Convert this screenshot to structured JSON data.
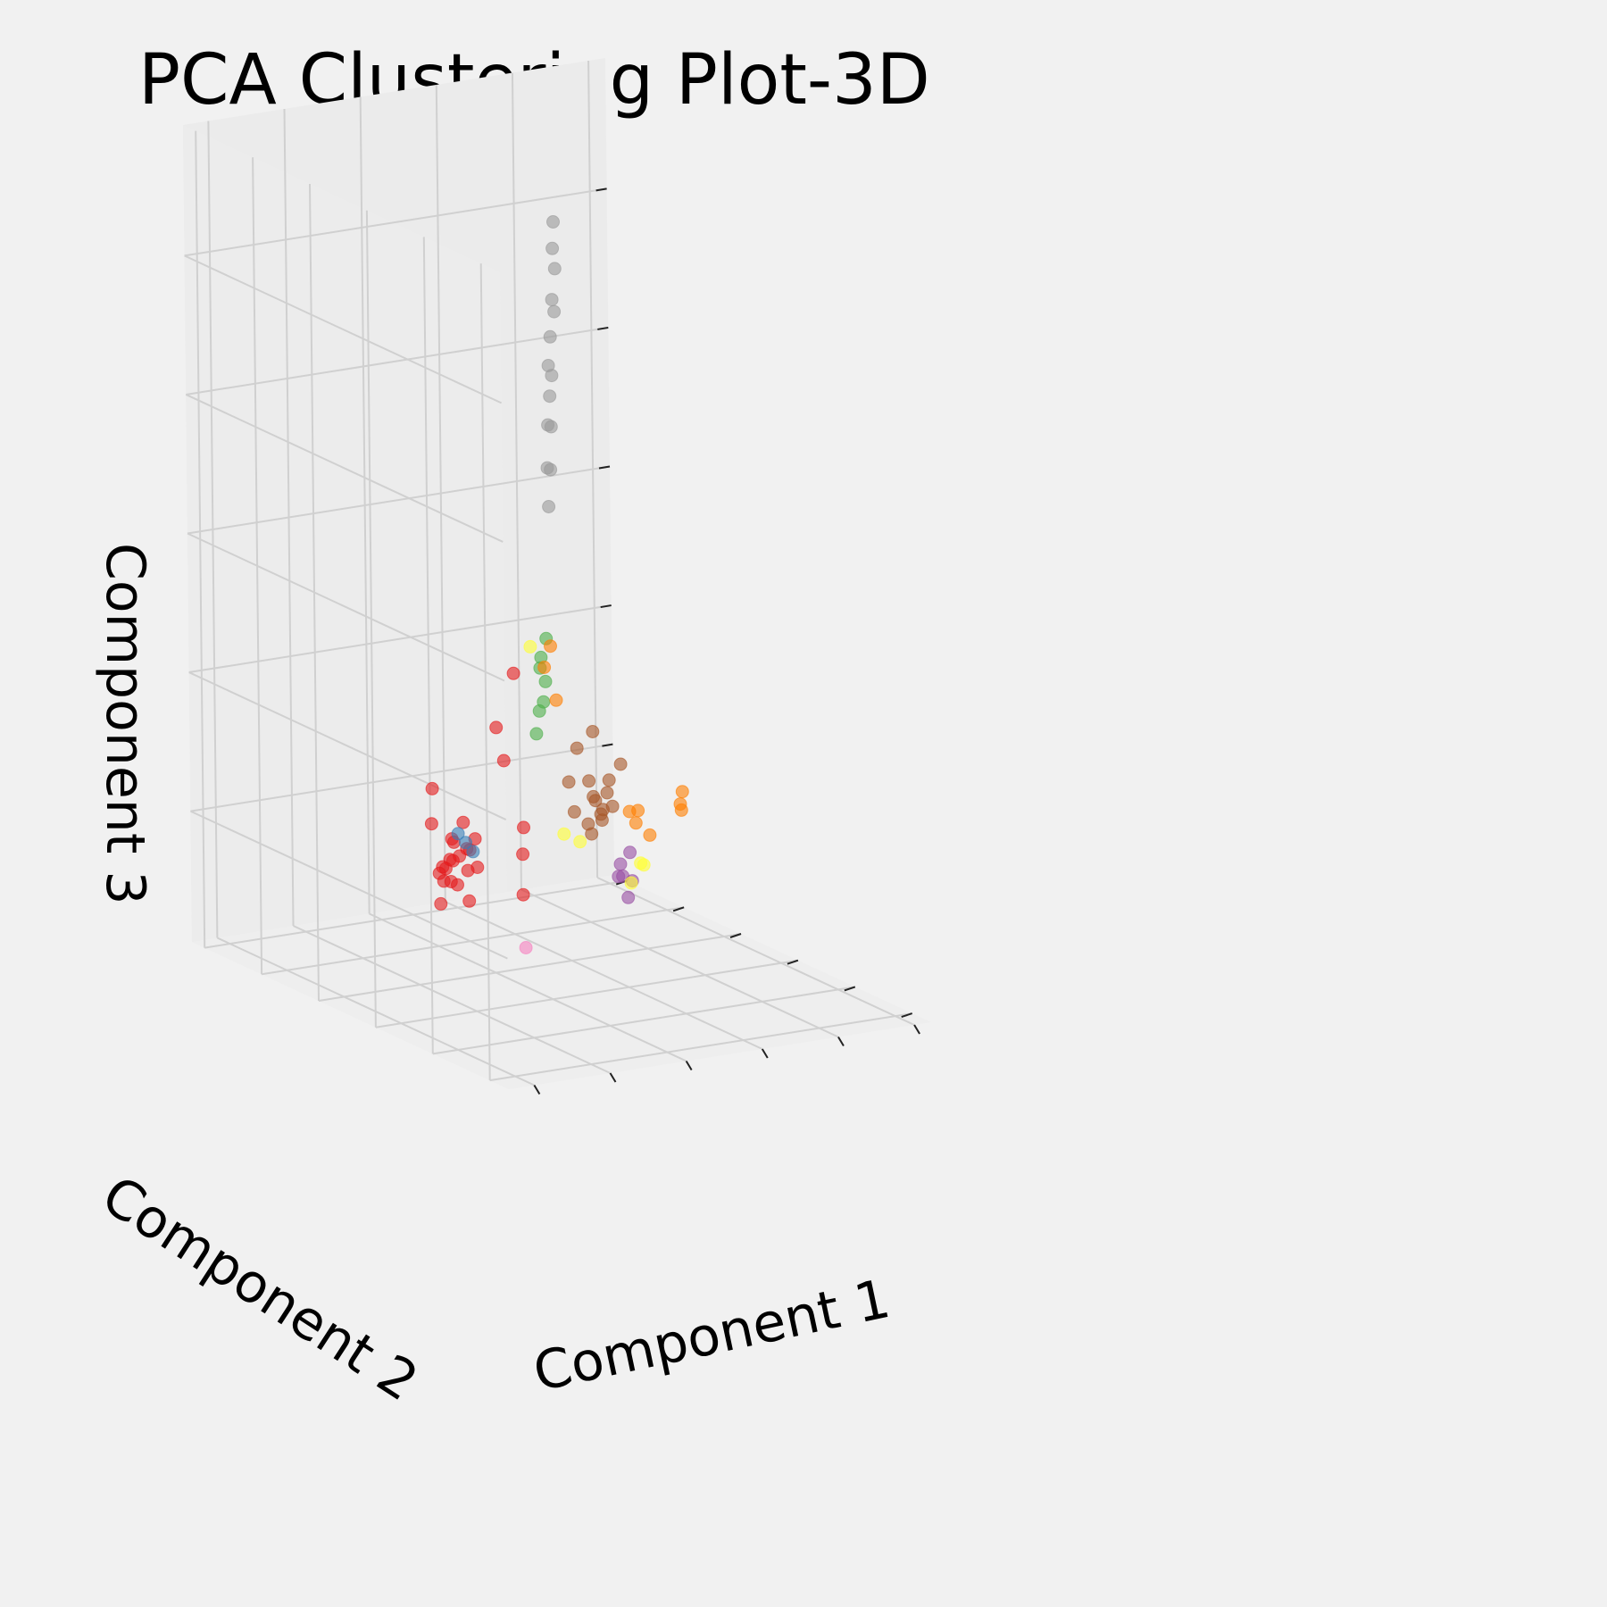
{
  "chart_data": {
    "type": "scatter",
    "projection": "3d",
    "title": "PCA Clustering Plot-3D",
    "xlabel": "Component 1",
    "ylabel": "Component 2",
    "zlabel": "Component 3",
    "xlim": [
      0,
      10
    ],
    "ylim": [
      0,
      10
    ],
    "zlim": [
      0,
      10
    ],
    "grid": true,
    "tick_labels": false,
    "series": [
      {
        "color": "#e41a1c",
        "points": [
          [
            1.2,
            3.4,
            2.1
          ],
          [
            1.0,
            3.1,
            1.9
          ],
          [
            1.4,
            3.6,
            2.3
          ],
          [
            0.9,
            2.9,
            2.2
          ],
          [
            1.3,
            3.3,
            1.8
          ],
          [
            1.1,
            3.5,
            2.0
          ],
          [
            1.5,
            3.0,
            2.4
          ],
          [
            0.8,
            3.2,
            2.0
          ],
          [
            1.2,
            2.8,
            1.7
          ],
          [
            1.6,
            3.4,
            2.2
          ],
          [
            1.0,
            3.7,
            2.5
          ],
          [
            1.3,
            3.1,
            2.6
          ],
          [
            1.1,
            2.7,
            2.1
          ],
          [
            1.4,
            3.8,
            1.9
          ],
          [
            0.9,
            3.3,
            1.6
          ],
          [
            1.7,
            3.2,
            2.0
          ],
          [
            1.2,
            3.6,
            1.8
          ],
          [
            1.0,
            3.0,
            2.4
          ],
          [
            1.5,
            3.5,
            2.1
          ],
          [
            1.3,
            2.9,
            2.3
          ],
          [
            2.6,
            3.2,
            4.3
          ],
          [
            2.4,
            3.5,
            3.6
          ],
          [
            2.2,
            3.0,
            3.3
          ],
          [
            0.8,
            3.4,
            3.0
          ],
          [
            3.0,
            3.5,
            2.0
          ],
          [
            3.1,
            3.6,
            2.3
          ],
          [
            2.7,
            3.1,
            1.6
          ]
        ]
      },
      {
        "color": "#377eb8",
        "points": [
          [
            1.5,
            3.3,
            2.3
          ],
          [
            1.4,
            3.4,
            2.4
          ],
          [
            1.6,
            3.2,
            2.2
          ]
        ]
      },
      {
        "color": "#4daf4a",
        "points": [
          [
            4.0,
            4.2,
            4.2
          ],
          [
            4.2,
            4.5,
            4.0
          ],
          [
            3.9,
            4.0,
            3.7
          ],
          [
            4.1,
            4.4,
            3.5
          ],
          [
            4.4,
            4.6,
            3.8
          ],
          [
            4.5,
            4.7,
            4.3
          ],
          [
            3.8,
            4.1,
            3.3
          ]
        ]
      },
      {
        "color": "#984ea3",
        "points": [
          [
            6.2,
            4.7,
            1.4
          ],
          [
            6.4,
            4.9,
            1.2
          ],
          [
            6.0,
            4.5,
            1.3
          ],
          [
            6.7,
            5.0,
            1.1
          ],
          [
            6.3,
            4.6,
            1.0
          ],
          [
            6.5,
            4.8,
            1.5
          ]
        ]
      },
      {
        "color": "#ff7f00",
        "points": [
          [
            4.3,
            4.5,
            4.0
          ],
          [
            4.6,
            4.7,
            4.2
          ],
          [
            4.5,
            4.4,
            3.6
          ],
          [
            6.5,
            4.8,
            2.0
          ],
          [
            6.8,
            5.0,
            1.8
          ],
          [
            7.0,
            5.2,
            1.9
          ],
          [
            8.3,
            5.6,
            1.8
          ],
          [
            8.5,
            5.8,
            1.9
          ],
          [
            8.4,
            5.7,
            1.7
          ],
          [
            7.2,
            5.1,
            1.6
          ]
        ]
      },
      {
        "color": "#ffff33",
        "points": [
          [
            3.6,
            4.0,
            4.4
          ],
          [
            5.1,
            4.5,
            1.8
          ],
          [
            6.9,
            5.0,
            1.3
          ],
          [
            7.2,
            5.3,
            1.2
          ],
          [
            6.6,
            4.9,
            1.1
          ],
          [
            4.8,
            4.6,
            1.9
          ]
        ]
      },
      {
        "color": "#a65628",
        "points": [
          [
            5.7,
            4.8,
            2.2
          ],
          [
            5.9,
            4.9,
            2.0
          ],
          [
            5.5,
            4.6,
            2.3
          ],
          [
            6.0,
            5.0,
            1.9
          ],
          [
            5.8,
            4.7,
            2.1
          ],
          [
            5.6,
            4.8,
            1.8
          ],
          [
            6.2,
            5.1,
            2.2
          ],
          [
            5.3,
            4.5,
            2.0
          ],
          [
            6.1,
            4.9,
            2.4
          ],
          [
            5.4,
            4.6,
            2.5
          ],
          [
            4.9,
            4.4,
            2.2
          ],
          [
            6.4,
            5.2,
            2.0
          ],
          [
            5.2,
            4.7,
            2.9
          ],
          [
            5.8,
            5.0,
            3.0
          ],
          [
            4.7,
            4.3,
            2.6
          ],
          [
            6.6,
            5.2,
            2.5
          ]
        ]
      },
      {
        "color": "#f781bf",
        "points": [
          [
            2.9,
            3.3,
            0.9
          ]
        ]
      },
      {
        "color": "#999999",
        "points": [
          [
            4.4,
            4.2,
            9.5
          ],
          [
            4.3,
            4.1,
            9.2
          ],
          [
            4.5,
            4.3,
            8.9
          ],
          [
            4.2,
            4.0,
            8.6
          ],
          [
            4.4,
            4.2,
            8.4
          ],
          [
            4.3,
            4.2,
            8.1
          ],
          [
            4.1,
            4.0,
            7.8
          ],
          [
            4.4,
            4.3,
            7.6
          ],
          [
            4.2,
            4.1,
            7.4
          ],
          [
            4.0,
            3.9,
            7.1
          ],
          [
            4.3,
            4.2,
            7.0
          ],
          [
            3.9,
            3.8,
            6.6
          ],
          [
            4.2,
            4.1,
            6.5
          ],
          [
            4.0,
            3.9,
            6.1
          ]
        ]
      }
    ]
  }
}
